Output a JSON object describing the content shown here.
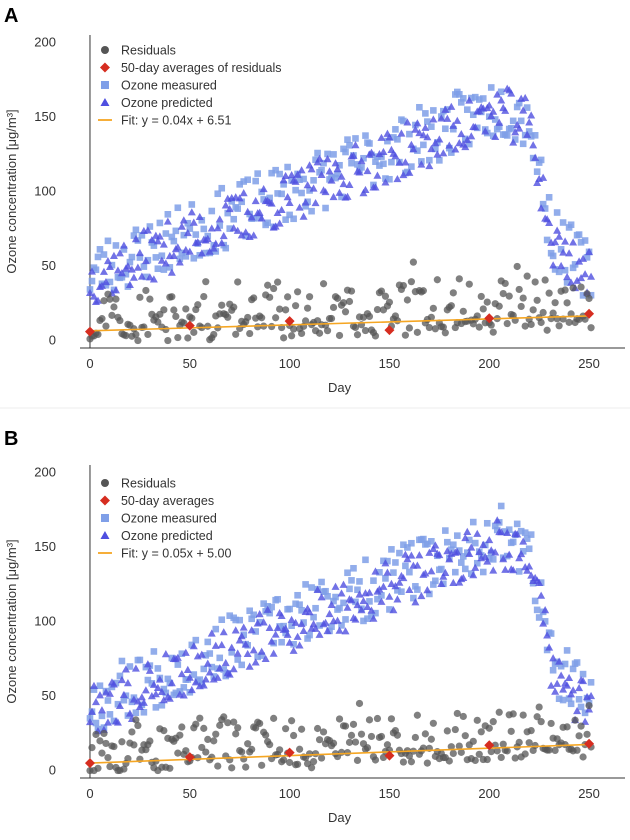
{
  "panels": [
    {
      "label": "A",
      "chart_data": {
        "type": "scatter",
        "xlabel": "Day",
        "ylabel": "Ozone concentration [μg/m³]",
        "xlim": [
          -5,
          268
        ],
        "ylim": [
          -5,
          205
        ],
        "xticks": [
          "0",
          "50",
          "100",
          "150",
          "200",
          "250"
        ],
        "yticks": [
          "0",
          "50",
          "100",
          "150",
          "200"
        ],
        "grid": false,
        "legend_position": "top-left",
        "legend": [
          "Residuals",
          "50-day averages of residuals",
          "Ozone measured",
          "Ozone predicted",
          "Fit: y = 0.04x + 6.51"
        ],
        "series": [
          {
            "name": "Residuals",
            "marker": "circle",
            "color": "#555555",
            "seed": 11,
            "model": "residual",
            "x_range": [
              0,
              251
            ]
          },
          {
            "name": "50-day averages of residuals",
            "marker": "diamond",
            "color": "#d62d20",
            "x": [
              0,
              50,
              100,
              150,
              200,
              250
            ],
            "y": [
              6,
              10,
              13,
              7,
              15,
              18
            ]
          },
          {
            "name": "Ozone measured",
            "marker": "square",
            "color": "#7f9fe8",
            "seed": 23,
            "model": "measured",
            "x_range": [
              0,
              251
            ]
          },
          {
            "name": "Ozone predicted",
            "marker": "triangle",
            "color": "#4f4fe0",
            "seed": 37,
            "model": "predicted",
            "x_range": [
              0,
              251
            ]
          },
          {
            "name": "Fit",
            "type": "line",
            "color": "#f5a623",
            "slope": 0.04,
            "intercept": 6.51,
            "x": [
              0,
              250
            ]
          }
        ]
      }
    },
    {
      "label": "B",
      "chart_data": {
        "type": "scatter",
        "xlabel": "Day",
        "ylabel": "Ozone concentration [μg/m³]",
        "xlim": [
          -5,
          268
        ],
        "ylim": [
          -5,
          205
        ],
        "xticks": [
          "0",
          "50",
          "100",
          "150",
          "200",
          "250"
        ],
        "yticks": [
          "0",
          "50",
          "100",
          "150",
          "200"
        ],
        "grid": false,
        "legend_position": "top-left",
        "legend": [
          "Residuals",
          "50-day averages",
          "Ozone measured",
          "Ozone predicted",
          "Fit: y = 0.05x + 5.00"
        ],
        "series": [
          {
            "name": "Residuals",
            "marker": "circle",
            "color": "#555555",
            "seed": 53,
            "model": "residual",
            "x_range": [
              0,
              251
            ]
          },
          {
            "name": "50-day averages",
            "marker": "diamond",
            "color": "#d62d20",
            "x": [
              0,
              50,
              100,
              150,
              200,
              250
            ],
            "y": [
              5,
              9,
              12,
              10,
              17,
              18
            ]
          },
          {
            "name": "Ozone measured",
            "marker": "square",
            "color": "#7f9fe8",
            "seed": 67,
            "model": "measured",
            "x_range": [
              0,
              251
            ]
          },
          {
            "name": "Ozone predicted",
            "marker": "triangle",
            "color": "#4f4fe0",
            "seed": 79,
            "model": "predicted",
            "x_range": [
              0,
              251
            ]
          },
          {
            "name": "Fit",
            "type": "line",
            "color": "#f5a623",
            "slope": 0.05,
            "intercept": 5.0,
            "x": [
              0,
              250
            ]
          }
        ]
      }
    }
  ]
}
